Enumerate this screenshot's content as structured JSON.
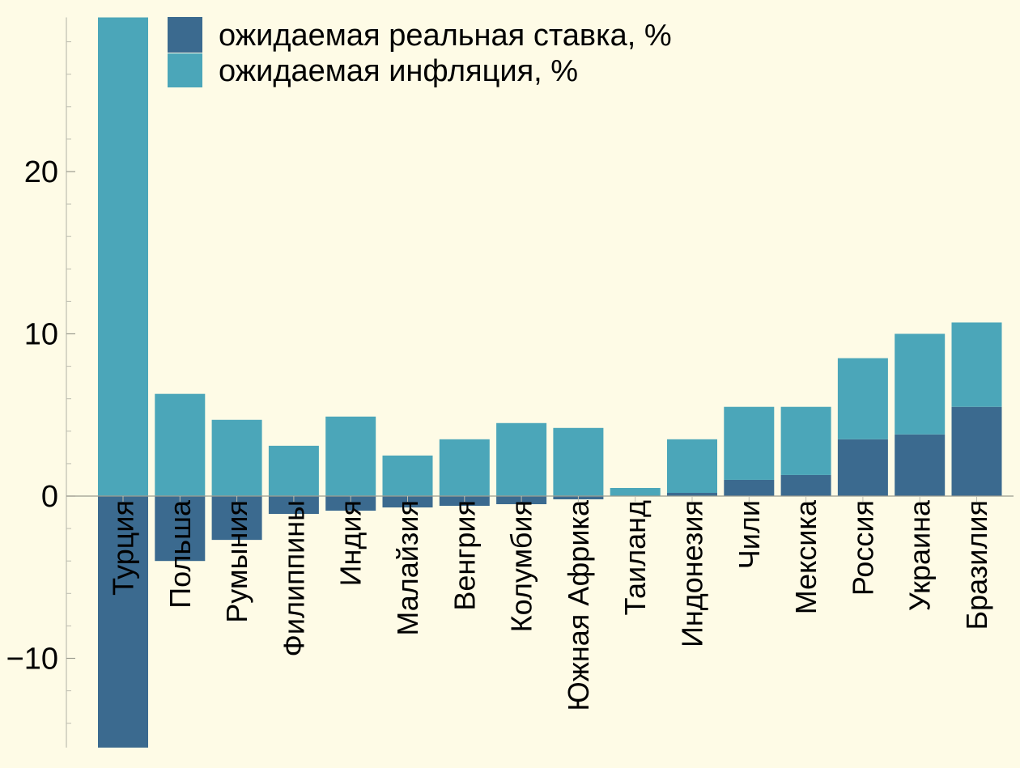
{
  "chart_data": {
    "type": "bar",
    "stacked": true,
    "categories": [
      "Турция",
      "Польша",
      "Румыния",
      "Филиппины",
      "Индия",
      "Малайзия",
      "Венгрия",
      "Колумбия",
      "Южная Африка",
      "Таиланд",
      "Индонезия",
      "Чили",
      "Мексика",
      "Россия",
      "Украина",
      "Бразилия"
    ],
    "series": [
      {
        "name": "ожидаемая реальная ставка, %",
        "color": "#3b6a8f",
        "values": [
          -15.5,
          -4.0,
          -2.7,
          -1.1,
          -0.9,
          -0.7,
          -0.6,
          -0.5,
          -0.2,
          0.0,
          0.2,
          1.0,
          1.3,
          3.5,
          3.8,
          5.5
        ]
      },
      {
        "name": "ожидаемая инфляция, %",
        "color": "#4ba6b9",
        "values": [
          29.5,
          6.3,
          4.7,
          3.1,
          4.9,
          2.5,
          3.5,
          4.5,
          4.2,
          0.5,
          3.3,
          4.5,
          4.2,
          5.0,
          6.2,
          5.2
        ]
      }
    ],
    "xlabel": "",
    "ylabel": "",
    "ylim": [
      -15.5,
      29.5
    ],
    "yticks": [
      -10,
      0,
      10,
      20
    ],
    "ytick_labels": [
      "−10",
      "0",
      "10",
      "20"
    ],
    "grid": false,
    "legend_position": "top-left"
  }
}
